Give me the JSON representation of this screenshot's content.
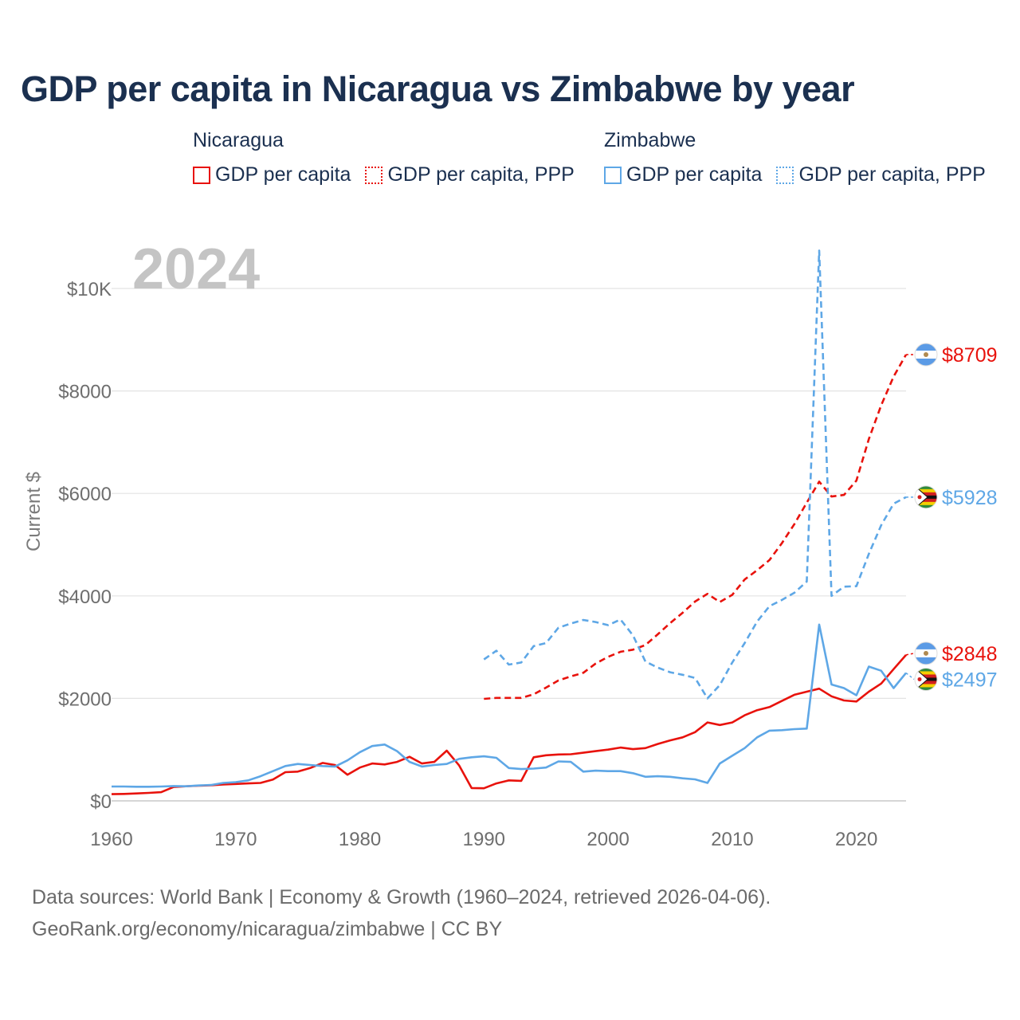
{
  "title": "GDP per capita in Nicaragua vs Zimbabwe by year",
  "legend": [
    {
      "country": "Nicaragua",
      "items": [
        {
          "label": "GDP per capita",
          "color": "#e8120c",
          "style": "solid"
        },
        {
          "label": "GDP per capita, PPP",
          "color": "#e8120c",
          "style": "dotted"
        }
      ]
    },
    {
      "country": "Zimbabwe",
      "items": [
        {
          "label": "GDP per capita",
          "color": "#5ea7e6",
          "style": "solid"
        },
        {
          "label": "GDP per capita, PPP",
          "color": "#5ea7e6",
          "style": "dotted"
        }
      ]
    }
  ],
  "year_watermark": "2024",
  "footer": {
    "line1": "Data sources: World Bank | Economy & Growth (1960–2024, retrieved 2026-04-06).",
    "line2": "GeoRank.org/economy/nicaragua/zimbabwe | CC BY"
  },
  "chart_data": {
    "type": "line",
    "ylabel": "Current $",
    "xlim": [
      1960,
      2024
    ],
    "ylim": [
      0,
      10000
    ],
    "x_ticks": [
      1960,
      1970,
      1980,
      1990,
      2000,
      2010,
      2020
    ],
    "y_ticks": [
      {
        "value": 0,
        "label": "$0"
      },
      {
        "value": 2000,
        "label": "$2000"
      },
      {
        "value": 4000,
        "label": "$4000"
      },
      {
        "value": 6000,
        "label": "$6000"
      },
      {
        "value": 8000,
        "label": "$8000"
      },
      {
        "value": 10000,
        "label": "$10K"
      }
    ],
    "grid": true,
    "series": [
      {
        "name": "Nicaragua GDP per capita",
        "country": "Nicaragua",
        "color": "#e8120c",
        "dash": "solid",
        "end_label": "$2848",
        "x": [
          1960,
          1961,
          1962,
          1963,
          1964,
          1965,
          1966,
          1967,
          1968,
          1969,
          1970,
          1971,
          1972,
          1973,
          1974,
          1975,
          1976,
          1977,
          1978,
          1979,
          1980,
          1981,
          1982,
          1983,
          1984,
          1985,
          1986,
          1987,
          1988,
          1989,
          1990,
          1991,
          1992,
          1993,
          1994,
          1995,
          1996,
          1997,
          1998,
          1999,
          2000,
          2001,
          2002,
          2003,
          2004,
          2005,
          2006,
          2007,
          2008,
          2009,
          2010,
          2011,
          2012,
          2013,
          2014,
          2015,
          2016,
          2017,
          2018,
          2019,
          2020,
          2021,
          2022,
          2023,
          2024
        ],
        "values": [
          130,
          135,
          145,
          155,
          170,
          270,
          285,
          295,
          305,
          320,
          330,
          340,
          350,
          415,
          560,
          570,
          640,
          740,
          700,
          510,
          650,
          730,
          710,
          760,
          860,
          730,
          760,
          980,
          690,
          250,
          245,
          340,
          400,
          390,
          850,
          890,
          905,
          910,
          940,
          970,
          1000,
          1040,
          1010,
          1030,
          1110,
          1180,
          1240,
          1340,
          1530,
          1480,
          1530,
          1670,
          1770,
          1830,
          1950,
          2070,
          2130,
          2190,
          2040,
          1960,
          1940,
          2130,
          2290,
          2570,
          2848
        ]
      },
      {
        "name": "Nicaragua GDP per capita, PPP",
        "country": "Nicaragua",
        "color": "#e8120c",
        "dash": "dashed",
        "end_label": "$8709",
        "x": [
          1990,
          1991,
          1992,
          1993,
          1994,
          1995,
          1996,
          1997,
          1998,
          1999,
          2000,
          2001,
          2002,
          2003,
          2004,
          2005,
          2006,
          2007,
          2008,
          2009,
          2010,
          2011,
          2012,
          2013,
          2014,
          2015,
          2016,
          2017,
          2018,
          2019,
          2020,
          2021,
          2022,
          2023,
          2024
        ],
        "values": [
          1990,
          2010,
          2010,
          2010,
          2080,
          2210,
          2350,
          2430,
          2500,
          2680,
          2810,
          2910,
          2950,
          3040,
          3250,
          3470,
          3670,
          3890,
          4040,
          3880,
          4020,
          4320,
          4500,
          4700,
          5030,
          5400,
          5820,
          6230,
          5940,
          5970,
          6250,
          7060,
          7720,
          8280,
          8709
        ]
      },
      {
        "name": "Zimbabwe GDP per capita",
        "country": "Zimbabwe",
        "color": "#5ea7e6",
        "dash": "solid",
        "end_label": "$2497",
        "x": [
          1960,
          1961,
          1962,
          1963,
          1964,
          1965,
          1966,
          1967,
          1968,
          1969,
          1970,
          1971,
          1972,
          1973,
          1974,
          1975,
          1976,
          1977,
          1978,
          1979,
          1980,
          1981,
          1982,
          1983,
          1984,
          1985,
          1986,
          1987,
          1988,
          1989,
          1990,
          1991,
          1992,
          1993,
          1994,
          1995,
          1996,
          1997,
          1998,
          1999,
          2000,
          2001,
          2002,
          2003,
          2004,
          2005,
          2006,
          2007,
          2008,
          2009,
          2010,
          2011,
          2012,
          2013,
          2014,
          2015,
          2016,
          2017,
          2018,
          2019,
          2020,
          2021,
          2022,
          2023,
          2024
        ],
        "values": [
          280,
          280,
          275,
          275,
          280,
          290,
          285,
          300,
          310,
          350,
          365,
          400,
          480,
          580,
          680,
          720,
          700,
          680,
          670,
          790,
          950,
          1070,
          1100,
          970,
          760,
          670,
          700,
          720,
          820,
          850,
          870,
          840,
          640,
          620,
          630,
          650,
          770,
          760,
          570,
          590,
          580,
          580,
          540,
          470,
          480,
          470,
          440,
          420,
          350,
          730,
          880,
          1030,
          1240,
          1370,
          1380,
          1400,
          1410,
          3440,
          2270,
          2200,
          2060,
          2620,
          2540,
          2200,
          2497
        ]
      },
      {
        "name": "Zimbabwe GDP per capita, PPP",
        "country": "Zimbabwe",
        "color": "#5ea7e6",
        "dash": "dashed",
        "end_label": "$5928",
        "x": [
          1990,
          1991,
          1992,
          1993,
          1994,
          1995,
          1996,
          1997,
          1998,
          1999,
          2000,
          2001,
          2002,
          2003,
          2004,
          2005,
          2006,
          2007,
          2008,
          2009,
          2010,
          2011,
          2012,
          2013,
          2014,
          2015,
          2016,
          2017,
          2018,
          2019,
          2020,
          2021,
          2022,
          2023,
          2024
        ],
        "values": [
          2760,
          2930,
          2660,
          2700,
          3020,
          3080,
          3380,
          3460,
          3530,
          3490,
          3430,
          3540,
          3230,
          2720,
          2600,
          2510,
          2460,
          2400,
          2000,
          2260,
          2700,
          3080,
          3500,
          3800,
          3920,
          4060,
          4280,
          10740,
          4000,
          4180,
          4190,
          4820,
          5380,
          5800,
          5928
        ]
      }
    ]
  }
}
